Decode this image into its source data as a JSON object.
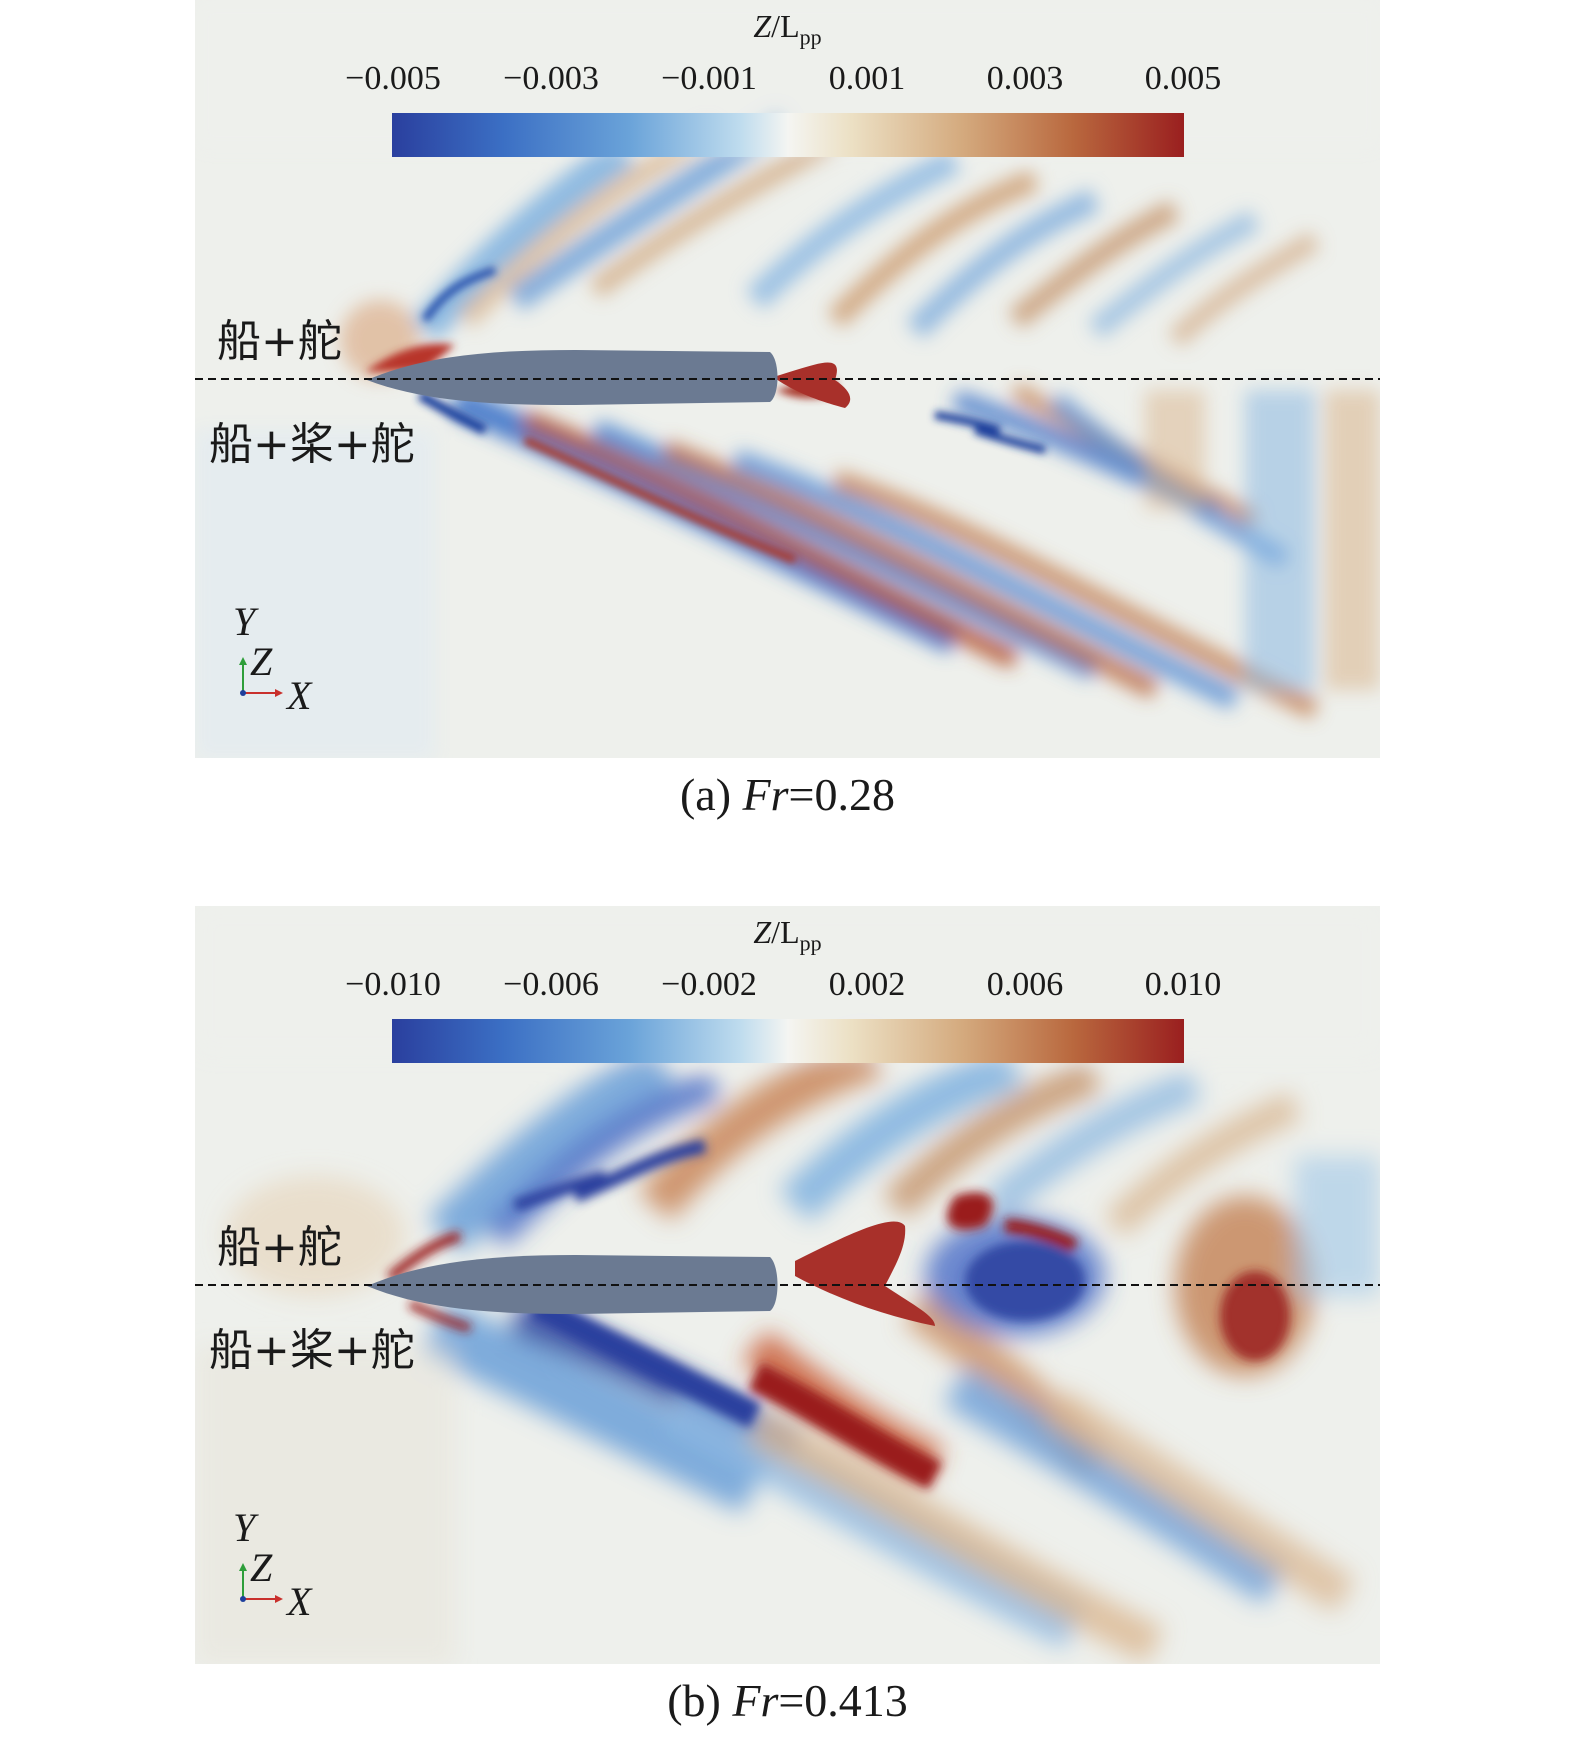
{
  "panels": [
    {
      "colorbar_title": "Z",
      "colorbar_title_rest": "/L",
      "colorbar_title_sub": "pp",
      "ticks": [
        "−0.005",
        "−0.003",
        "−0.001",
        "0.001",
        "0.003",
        "0.005"
      ],
      "label_top": "船+舵",
      "label_bottom": "船+桨+舵",
      "axis_y": "Y",
      "axis_z": "Z",
      "axis_x": "X",
      "caption_prefix": "(a) ",
      "caption_var": "Fr",
      "caption_value": "=0.28"
    },
    {
      "colorbar_title": "Z",
      "colorbar_title_rest": "/L",
      "colorbar_title_sub": "pp",
      "ticks": [
        "−0.010",
        "−0.006",
        "−0.002",
        "0.002",
        "0.006",
        "0.010"
      ],
      "label_top": "船+舵",
      "label_bottom": "船+桨+舵",
      "axis_y": "Y",
      "axis_z": "Z",
      "axis_x": "X",
      "caption_prefix": "(b) ",
      "caption_var": "Fr",
      "caption_value": "=0.413"
    }
  ],
  "colors": {
    "background": "#eef0ec",
    "hull": "#6b7a92",
    "crest": "#a8372a",
    "trough": "#2f5fb8"
  }
}
